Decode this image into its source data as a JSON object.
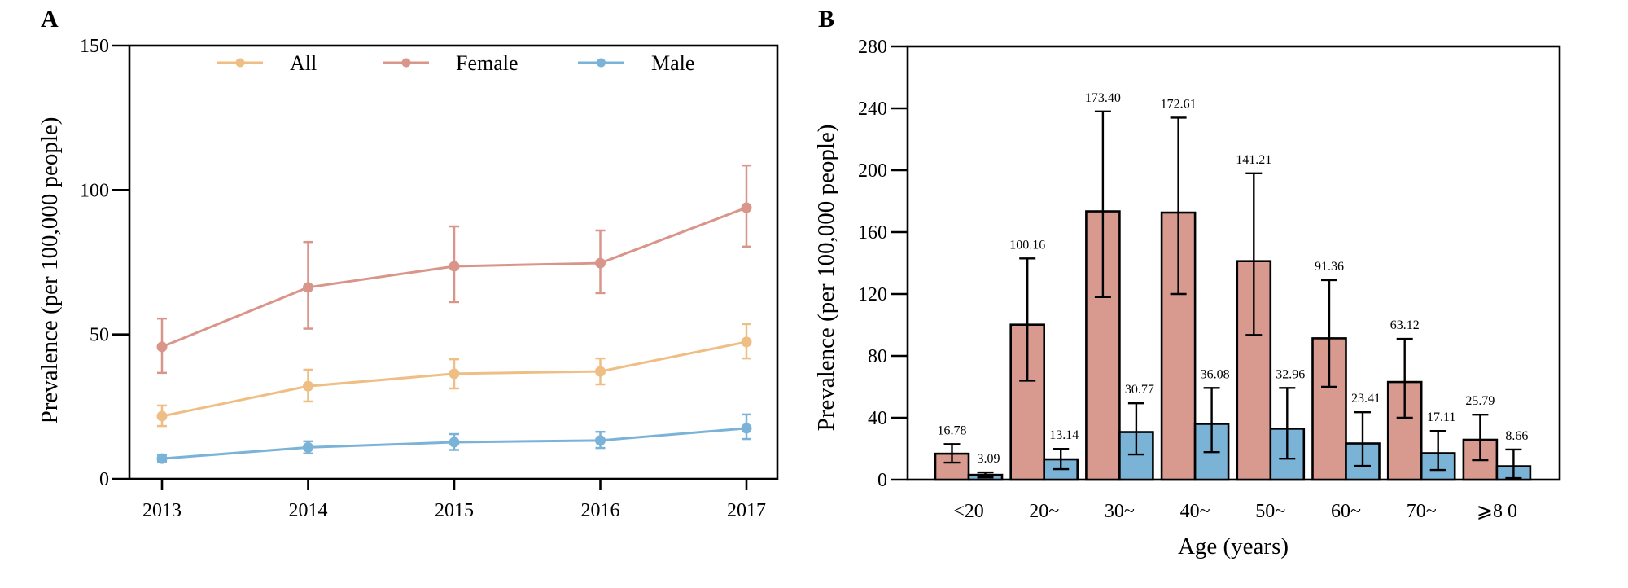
{
  "chart_data": [
    {
      "panel": "A",
      "type": "line",
      "title": "",
      "xlabel": "",
      "ylabel": "Prevalence (per 100,000 people)",
      "ylim": [
        0,
        150
      ],
      "yticks": [
        "0",
        "50",
        "100",
        "150"
      ],
      "x": [
        "2013",
        "2014",
        "2015",
        "2016",
        "2017"
      ],
      "legend_position": "top",
      "grid": false,
      "series": [
        {
          "name": "All",
          "color": "#EFBE85",
          "values": [
            21.7,
            32.1,
            36.4,
            37.2,
            47.4
          ],
          "err_low": [
            18.3,
            26.8,
            31.3,
            32.7,
            41.7
          ],
          "err_high": [
            25.4,
            37.8,
            41.4,
            41.7,
            53.6
          ]
        },
        {
          "name": "Female",
          "color": "#D9958A",
          "values": [
            45.7,
            66.3,
            73.6,
            74.7,
            93.9
          ],
          "err_low": [
            36.7,
            52.0,
            61.2,
            64.3,
            80.4
          ],
          "err_high": [
            55.5,
            82.0,
            87.4,
            86.0,
            108.5
          ]
        },
        {
          "name": "Male",
          "color": "#7AB3D7",
          "values": [
            7.0,
            10.9,
            12.7,
            13.3,
            17.5
          ],
          "err_low": [
            6.0,
            8.8,
            10.0,
            10.7,
            13.8
          ],
          "err_high": [
            8.3,
            13.0,
            15.5,
            16.3,
            22.3
          ]
        }
      ]
    },
    {
      "panel": "B",
      "type": "bar",
      "title": "",
      "xlabel": "Age (years)",
      "ylabel": "Prevalence (per 100,000 people)",
      "ylim": [
        0,
        280
      ],
      "yticks": [
        "0",
        "40",
        "80",
        "120",
        "160",
        "200",
        "240",
        "280"
      ],
      "categories": [
        "<20",
        "20~",
        "30~",
        "40~",
        "50~",
        "60~",
        "70~",
        "⩾8 0"
      ],
      "grid": false,
      "series": [
        {
          "name": "Female",
          "color": "#D89A8E",
          "values": [
            16.78,
            100.16,
            173.4,
            172.61,
            141.21,
            91.36,
            63.12,
            25.79
          ],
          "labels": [
            "16.78",
            "100.16",
            "173.40",
            "172.61",
            "141.21",
            "91.36",
            "63.12",
            "25.79"
          ],
          "err_low": [
            11.0,
            64.0,
            118.0,
            120.0,
            93.5,
            60.0,
            40.0,
            12.6
          ],
          "err_high": [
            23.0,
            143.0,
            238.0,
            234.0,
            198.0,
            129.0,
            91.0,
            42.0
          ]
        },
        {
          "name": "Male",
          "color": "#7BB3D6",
          "values": [
            3.09,
            13.14,
            30.77,
            36.08,
            32.96,
            23.41,
            17.11,
            8.66
          ],
          "labels": [
            "3.09",
            "13.14",
            "30.77",
            "36.08",
            "32.96",
            "23.41",
            "17.11",
            "8.66"
          ],
          "err_low": [
            1.5,
            6.8,
            16.3,
            17.8,
            13.6,
            8.9,
            6.3,
            1.0
          ],
          "err_high": [
            4.7,
            19.9,
            49.4,
            59.3,
            59.3,
            43.6,
            31.5,
            19.5
          ]
        }
      ]
    }
  ]
}
